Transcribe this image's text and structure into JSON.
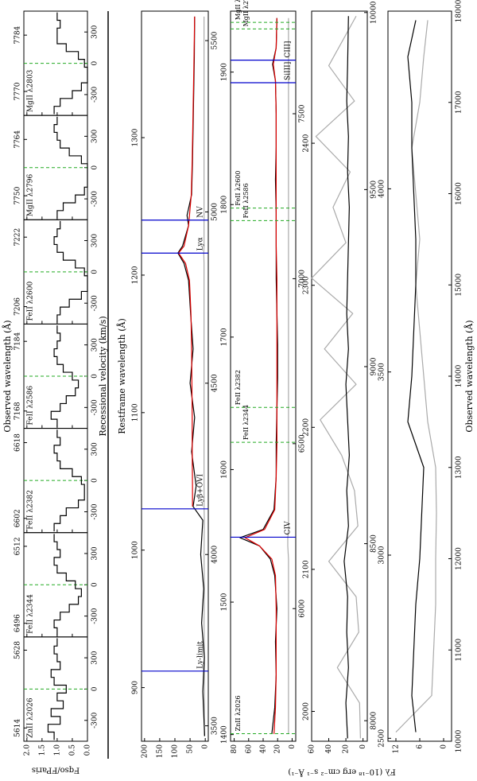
{
  "chart_data": [
    {
      "type": "step",
      "title": "Observed wavelength (Å)",
      "xlabel": "Recessional velocity (km/s)",
      "ylabel": "Fqso/FParis",
      "xlim": [
        -500,
        500
      ],
      "xticks": [
        -300,
        0,
        300
      ],
      "ylim": [
        0,
        2.1
      ],
      "yticks": [
        {
          "value": 0,
          "label": "0.0"
        },
        0.5,
        {
          "value": 1,
          "label": "1.0"
        },
        1.5,
        {
          "value": 2,
          "label": "2.0"
        }
      ],
      "x": [
        -450,
        -375,
        -300,
        -225,
        -150,
        -75,
        0,
        75,
        150,
        225,
        300,
        375,
        450
      ],
      "panels": [
        {
          "name": "ZnII λ2026",
          "color": "#000000",
          "obs_ticks": [
            {
              "value": -373,
              "label": "5614"
            },
            {
              "value": 373,
              "label": "5628"
            }
          ],
          "values": [
            1.1,
            1.3,
            0.9,
            1.2,
            0.8,
            1.0,
            0.7,
            1.1,
            1.2,
            0.9,
            1.0,
            1.1,
            1.0
          ]
        },
        {
          "name": "FeII λ2344",
          "color": "#000000",
          "obs_ticks": [
            {
              "value": -369,
              "label": "6496"
            },
            {
              "value": 369,
              "label": "6512"
            }
          ],
          "values": [
            1.0,
            1.1,
            0.9,
            0.6,
            0.3,
            0.2,
            0.4,
            0.7,
            1.0,
            1.1,
            0.9,
            1.0,
            1.1
          ]
        },
        {
          "name": "FeII λ2382",
          "color": "#000000",
          "obs_ticks": [
            {
              "value": -363,
              "label": "6602"
            },
            {
              "value": 363,
              "label": "6618"
            }
          ],
          "values": [
            1.1,
            0.9,
            0.7,
            0.3,
            0.1,
            0.1,
            0.2,
            0.5,
            0.9,
            1.0,
            1.1,
            0.9,
            1.0
          ]
        },
        {
          "name": "FeII λ2586",
          "color": "#000000",
          "obs_ticks": [
            {
              "value": -334,
              "label": "7168"
            },
            {
              "value": 334,
              "label": "7184"
            }
          ],
          "values": [
            1.0,
            1.2,
            0.9,
            0.7,
            0.4,
            0.3,
            0.5,
            0.8,
            1.0,
            1.1,
            1.0,
            0.9,
            1.0
          ]
        },
        {
          "name": "FeII λ2600",
          "color": "#000000",
          "obs_ticks": [
            {
              "value": -333,
              "label": "7206"
            },
            {
              "value": 333,
              "label": "7222"
            }
          ],
          "values": [
            1.0,
            0.9,
            0.6,
            0.2,
            0.0,
            0.0,
            0.1,
            0.4,
            0.8,
            1.0,
            1.1,
            1.0,
            0.9
          ]
        },
        {
          "name": "MgII λ2796",
          "color": "#000000",
          "obs_ticks": [
            {
              "value": -270,
              "label": "7750"
            },
            {
              "value": 270,
              "label": "7764"
            }
          ],
          "values": [
            1.0,
            0.8,
            0.4,
            0.1,
            0.0,
            0.0,
            0.0,
            0.2,
            0.6,
            0.9,
            1.0,
            1.1,
            1.0
          ]
        },
        {
          "name": "MgII λ2803",
          "color": "#000000",
          "obs_ticks": [
            {
              "value": -270,
              "label": "7770"
            },
            {
              "value": 270,
              "label": "7784"
            }
          ],
          "values": [
            1.1,
            0.9,
            0.5,
            0.2,
            0.0,
            0.0,
            0.1,
            0.3,
            0.7,
            1.0,
            1.0,
            0.9,
            1.0
          ]
        }
      ]
    },
    {
      "type": "line",
      "x2label": "Restframe wavelength (Å)",
      "ylabel": "Fλ (10⁻¹⁸ erg cm⁻² s⁻¹ Å⁻¹)",
      "xlim": [
        3455,
        5586
      ],
      "xticks": [
        3500,
        4000,
        4500,
        5000,
        5500
      ],
      "x2lim": [
        861,
        1392
      ],
      "x2ticks": [
        900,
        1000,
        1100,
        1200,
        1300
      ],
      "ylim": [
        -10,
        210
      ],
      "yticks": [
        0,
        50,
        100,
        150,
        200
      ],
      "x": [
        3470,
        3600,
        3700,
        3800,
        3900,
        4000,
        4100,
        4140,
        4200,
        4300,
        4400,
        4500,
        4600,
        4700,
        4800,
        4850,
        4880,
        4900,
        4960,
        4990,
        5050,
        5150,
        5250,
        5350,
        5450,
        5570
      ],
      "series": [
        {
          "color": "#aaaaaa",
          "values": [
            3,
            3,
            3,
            4,
            3,
            4,
            3,
            4,
            4,
            4,
            4,
            4,
            4,
            4,
            4,
            4,
            5,
            4,
            4,
            4,
            4,
            4,
            4,
            4,
            4,
            4
          ]
        },
        {
          "color": "#000000",
          "values": [
            2,
            8,
            3,
            12,
            5,
            15,
            8,
            40,
            30,
            45,
            35,
            50,
            40,
            48,
            55,
            70,
            90,
            75,
            55,
            60,
            45,
            42,
            40,
            38,
            36,
            35
          ]
        },
        {
          "color": "#dd0000",
          "values": [
            null,
            null,
            null,
            null,
            null,
            null,
            null,
            42,
            42,
            43,
            43,
            44,
            45,
            47,
            52,
            65,
            88,
            70,
            55,
            52,
            46,
            43,
            41,
            39,
            37,
            35
          ]
        }
      ],
      "lines": [
        {
          "label": "Ly-limit",
          "rest": 912
        },
        {
          "label": "Lyβ+OVI",
          "rest": 1030
        },
        {
          "label": "Lyα",
          "rest": 1216
        },
        {
          "label": "NV",
          "rest": 1240
        }
      ],
      "line_color": "#0000cc"
    },
    {
      "type": "line",
      "xlim": [
        5598,
        7811
      ],
      "xticks": [
        6000,
        6500,
        7000,
        7500
      ],
      "x2lim": [
        1395,
        1946
      ],
      "x2ticks": [
        1400,
        1500,
        1600,
        1700,
        1800,
        1900
      ],
      "ylim": [
        -5,
        85
      ],
      "yticks": [
        0,
        20,
        40,
        60,
        80
      ],
      "x": [
        5620,
        5700,
        5800,
        5900,
        6000,
        6100,
        6150,
        6190,
        6215,
        6240,
        6300,
        6400,
        6500,
        6600,
        6700,
        6800,
        6900,
        7000,
        7100,
        7200,
        7300,
        7400,
        7500,
        7600,
        7650,
        7700,
        7790
      ],
      "series": [
        {
          "color": "#aaaaaa",
          "values": [
            5,
            5,
            5,
            5,
            5,
            5,
            5,
            6,
            6,
            5,
            5,
            5,
            5,
            5,
            5,
            5,
            5,
            5,
            5,
            5,
            5,
            5,
            5,
            5,
            5,
            5,
            5
          ]
        },
        {
          "color": "#000000",
          "values": [
            28,
            24,
            22,
            23,
            21,
            24,
            30,
            45,
            72,
            40,
            25,
            22,
            22,
            21,
            20,
            20,
            21,
            22,
            22,
            22,
            23,
            22,
            22,
            23,
            27,
            22,
            21
          ]
        },
        {
          "color": "#dd0000",
          "values": [
            25,
            23,
            22,
            22,
            22,
            23,
            28,
            45,
            65,
            38,
            24,
            22,
            21,
            21,
            21,
            21,
            21,
            21,
            22,
            22,
            22,
            22,
            22,
            23,
            26,
            22,
            21
          ]
        }
      ],
      "lines": [
        {
          "label": "CIV",
          "rest": 1549
        },
        {
          "label": "SiIII]",
          "rest": 1892
        },
        {
          "label": "CIII]",
          "rest": 1909
        }
      ],
      "line_color": "#0000cc",
      "absorbers": [
        {
          "label": "ZnII λ2026",
          "x": 5621
        },
        {
          "label": "FeII λ2344",
          "x": 6504
        },
        {
          "label": "FeII λ2382",
          "x": 6610
        },
        {
          "label": "FeII λ2586",
          "x": 7176
        },
        {
          "label": "FeII λ2600",
          "x": 7214
        },
        {
          "label": "MgII λ2796",
          "x": 7757
        },
        {
          "label": "MgII λ2803",
          "x": 7777
        }
      ],
      "absorber_color": "#22aa22"
    },
    {
      "type": "line",
      "xlim": [
        7942,
        10004
      ],
      "xticks": [
        8000,
        8500,
        9000,
        9500,
        10000
      ],
      "x2lim": [
        1979,
        2493
      ],
      "x2ticks": [
        2000,
        2100,
        2200,
        2300,
        2400
      ],
      "ylim": [
        -5,
        60
      ],
      "yticks": [
        0,
        20,
        40,
        60
      ],
      "x": [
        7950,
        8050,
        8150,
        8250,
        8350,
        8450,
        8550,
        8650,
        8750,
        8850,
        8950,
        9050,
        9150,
        9250,
        9350,
        9450,
        9550,
        9650,
        9750,
        9850,
        9990
      ],
      "series": [
        {
          "color": "#aaaaaa",
          "values": [
            3,
            4,
            30,
            5,
            8,
            40,
            6,
            10,
            25,
            50,
            8,
            45,
            12,
            60,
            20,
            35,
            15,
            55,
            10,
            40,
            8
          ]
        },
        {
          "color": "#000000",
          "values": [
            18,
            20,
            17,
            19,
            18,
            22,
            17,
            19,
            16,
            18,
            20,
            17,
            19,
            18,
            17,
            16,
            18,
            17,
            19,
            18,
            17
          ]
        }
      ]
    },
    {
      "type": "line",
      "xlabel": "Observed wavelength (Å)",
      "xlim": [
        10000,
        18000
      ],
      "xticks": [
        10000,
        11000,
        12000,
        13000,
        14000,
        15000,
        16000,
        17000,
        18000
      ],
      "x2lim": [
        2492,
        4485
      ],
      "x2ticks": [
        2500,
        3000,
        3500,
        4000
      ],
      "ylim": [
        -2,
        14
      ],
      "yticks": [
        0,
        6,
        12
      ],
      "x": [
        10100,
        10500,
        11000,
        11500,
        12000,
        12500,
        13000,
        13500,
        14000,
        14500,
        15000,
        15500,
        16000,
        16500,
        17000,
        17500,
        17900
      ],
      "series": [
        {
          "color": "#aaaaaa",
          "values": [
            12,
            3,
            2.5,
            2,
            2,
            1.8,
            2,
            4,
            5,
            6,
            7,
            6,
            7,
            8,
            6,
            5,
            4
          ]
        },
        {
          "color": "#000000",
          "values": [
            7,
            8,
            7.5,
            7,
            6,
            5.5,
            5,
            9,
            8,
            7.5,
            7,
            7,
            7.5,
            8,
            8,
            9,
            7
          ]
        }
      ]
    }
  ]
}
